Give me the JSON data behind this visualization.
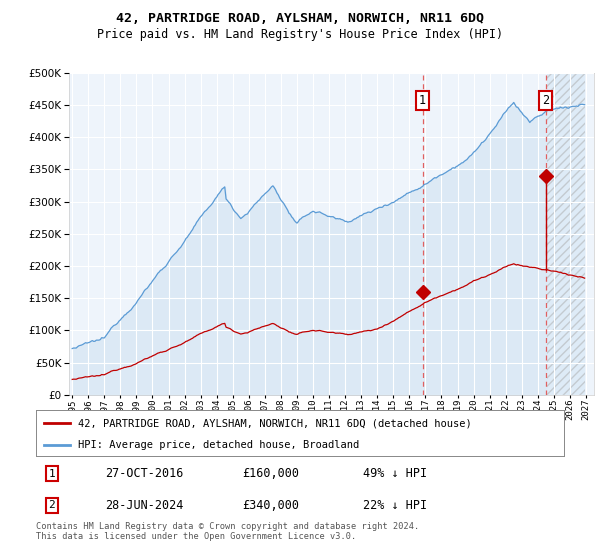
{
  "title": "42, PARTRIDGE ROAD, AYLSHAM, NORWICH, NR11 6DQ",
  "subtitle": "Price paid vs. HM Land Registry's House Price Index (HPI)",
  "legend_line1": "42, PARTRIDGE ROAD, AYLSHAM, NORWICH, NR11 6DQ (detached house)",
  "legend_line2": "HPI: Average price, detached house, Broadland",
  "transaction1_date": "27-OCT-2016",
  "transaction1_price": "£160,000",
  "transaction1_hpi": "49% ↓ HPI",
  "transaction1_year": 2016.83,
  "transaction1_value": 160000,
  "transaction2_date": "28-JUN-2024",
  "transaction2_price": "£340,000",
  "transaction2_hpi": "22% ↓ HPI",
  "transaction2_year": 2024.5,
  "transaction2_value": 340000,
  "footnote": "Contains HM Land Registry data © Crown copyright and database right 2024.\nThis data is licensed under the Open Government Licence v3.0.",
  "hpi_color": "#5b9bd5",
  "hpi_fill_color": "#dce9f5",
  "hatch_fill_color": "#d0e4f5",
  "price_color": "#c00000",
  "vline_color": "#e06060",
  "marker_color": "#c00000",
  "ylim": [
    0,
    500000
  ],
  "xmin": 1994.8,
  "xmax": 2027.5,
  "plot_bg_color": "#eef4fb"
}
